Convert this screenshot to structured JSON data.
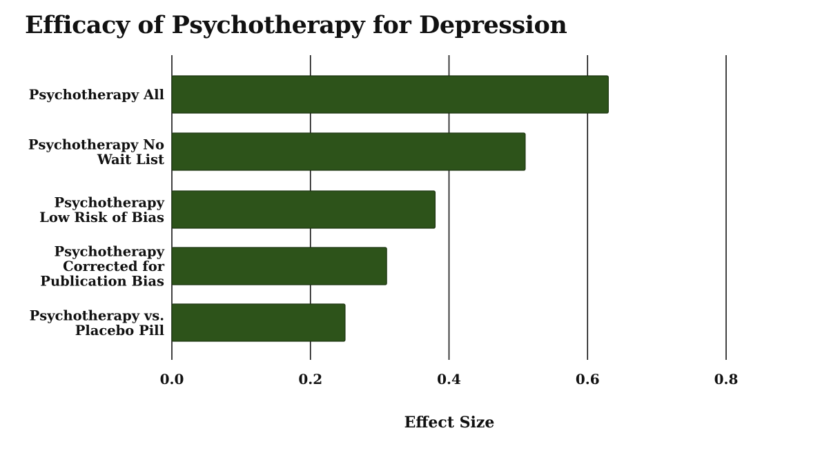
{
  "chart_data": {
    "type": "bar",
    "orientation": "horizontal",
    "title": "Efficacy of Psychotherapy for Depression",
    "xlabel": "Effect Size",
    "ylabel": "",
    "categories": [
      "Psychotherapy All",
      "Psychotherapy No Wait List",
      "Psychotherapy Low Risk of Bias",
      "Psychotherapy Corrected for Publication Bias",
      "Psychotherapy vs. Placebo Pill"
    ],
    "category_lines": [
      [
        "Psychotherapy All"
      ],
      [
        "Psychotherapy No",
        "Wait List"
      ],
      [
        "Psychotherapy",
        "Low Risk of Bias"
      ],
      [
        "Psychotherapy",
        "Corrected for",
        "Publication Bias"
      ],
      [
        "Psychotherapy vs.",
        "Placebo Pill"
      ]
    ],
    "values": [
      0.63,
      0.51,
      0.38,
      0.31,
      0.25
    ],
    "xlim": [
      0,
      0.8
    ],
    "xticks": [
      "0.0",
      "0.2",
      "0.4",
      "0.6",
      "0.8"
    ],
    "grid": "vertical",
    "legend": "none",
    "colors": {
      "bar_fill": "#2d531a",
      "bar_edge": "#1c3410",
      "grid": "#111111",
      "text": "#111111"
    }
  }
}
